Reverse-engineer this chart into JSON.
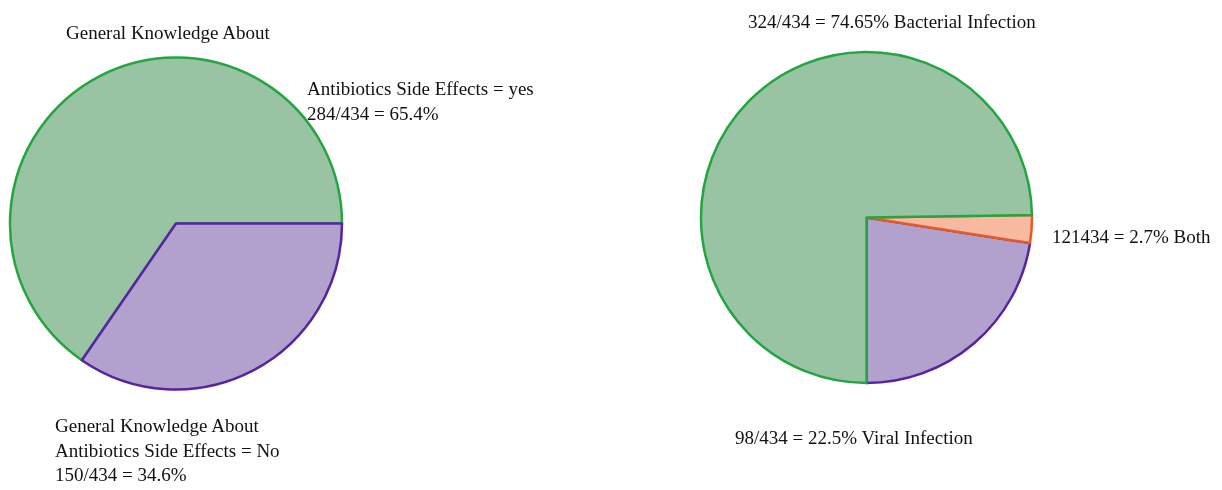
{
  "chart_data": [
    {
      "type": "pie",
      "title": "General Knowledge About",
      "categories": [
        "Antibiotics Side Effects = yes",
        "General Knowledge About\nAntibiotics Side Effects = No"
      ],
      "values": [
        65.4,
        34.6
      ],
      "colors": [
        "#99c4a3",
        "#b2a1cc"
      ],
      "value_labels": [
        "284/434 = 65.4%",
        "150/434 = 34.6%"
      ],
      "legend": false
    },
    {
      "type": "pie",
      "categories": [
        "Viral Infection",
        "Both",
        "Bacterial Infection"
      ],
      "values": [
        22.5,
        2.7,
        74.65
      ],
      "colors": [
        "#b2a1cc",
        "#f7b9a0",
        "#99c4a3"
      ],
      "value_labels": [
        "98/434 = 22.5%",
        "121434 = 2.7%",
        "324/434 = 74.65%"
      ],
      "legend": false
    }
  ]
}
